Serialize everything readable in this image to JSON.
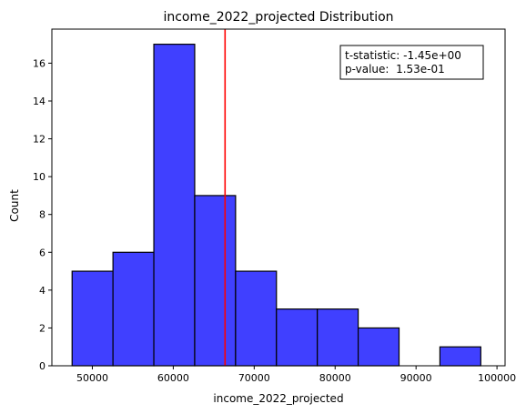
{
  "chart_data": {
    "type": "bar",
    "title": "income_2022_projected Distribution",
    "xlabel": "income_2022_projected",
    "ylabel": "Count",
    "xlim": [
      45000,
      101000
    ],
    "ylim": [
      0,
      17.8
    ],
    "xticks": [
      50000,
      60000,
      70000,
      80000,
      90000,
      100000
    ],
    "yticks": [
      0,
      2,
      4,
      6,
      8,
      10,
      12,
      14,
      16
    ],
    "bins": [
      {
        "x0": 47500,
        "x1": 52550,
        "count": 5
      },
      {
        "x0": 52550,
        "x1": 57600,
        "count": 6
      },
      {
        "x0": 57600,
        "x1": 62650,
        "count": 17
      },
      {
        "x0": 62650,
        "x1": 67700,
        "count": 9
      },
      {
        "x0": 67700,
        "x1": 72750,
        "count": 5
      },
      {
        "x0": 72750,
        "x1": 77800,
        "count": 3
      },
      {
        "x0": 77800,
        "x1": 82850,
        "count": 3
      },
      {
        "x0": 82850,
        "x1": 87900,
        "count": 2
      },
      {
        "x0": 87900,
        "x1": 92950,
        "count": 0
      },
      {
        "x0": 92950,
        "x1": 98000,
        "count": 1
      }
    ],
    "reference_line": {
      "x": 66400,
      "color": "#ff0000"
    },
    "annotation": {
      "line1": "t-statistic: -1.45e+00",
      "line2": "p-value:  1.53e-01"
    },
    "bar_color": "#4040ff",
    "grid": false,
    "legend": "none"
  }
}
